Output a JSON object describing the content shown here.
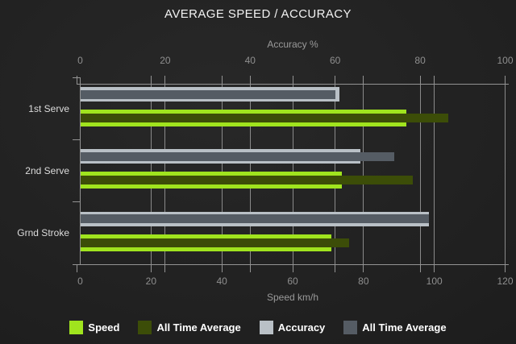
{
  "chart_data": {
    "type": "bar",
    "orientation": "horizontal",
    "title": "AVERAGE SPEED / ACCURACY",
    "categories": [
      "1st Serve",
      "2nd Serve",
      "Grnd Stroke"
    ],
    "axes": {
      "top": {
        "label": "Accuracy %",
        "ticks": [
          0,
          20,
          40,
          60,
          80,
          100
        ],
        "range": [
          0,
          100
        ]
      },
      "bottom": {
        "label": "Speed km/h",
        "ticks": [
          0,
          20,
          40,
          60,
          80,
          100,
          120
        ],
        "range": [
          0,
          120
        ]
      }
    },
    "series": [
      {
        "name": "Speed",
        "axis": "bottom",
        "color": "#a0e41e",
        "values": [
          92,
          74,
          71
        ]
      },
      {
        "name": "All Time Average",
        "axis": "bottom",
        "color": "#3c4d08",
        "values": [
          104,
          94,
          76
        ]
      },
      {
        "name": "Accuracy",
        "axis": "top",
        "color": "#b9c0c6",
        "values": [
          61,
          66,
          82
        ]
      },
      {
        "name": "All Time Average",
        "axis": "top",
        "color": "#555c64",
        "values": [
          60,
          74,
          82
        ]
      }
    ],
    "legend": [
      {
        "label": "Speed",
        "color": "#a0e41e"
      },
      {
        "label": "All Time Average",
        "color": "#3c4d08"
      },
      {
        "label": "Accuracy",
        "color": "#b9c0c6"
      },
      {
        "label": "All Time Average",
        "color": "#555c64"
      }
    ],
    "grid": true,
    "legend_position": "bottom"
  },
  "colors": {
    "background": "#1f1f1f",
    "speed": "#a0e41e",
    "all_time_average_speed": "#3c4d08",
    "accuracy": "#b9c0c6",
    "all_time_average_accuracy": "#555c64",
    "gridline": "#8a8a8a",
    "axis_line": "#939393",
    "tick_label": "#8f8f8f",
    "axis_title": "#9a9a9a",
    "category_label": "#dcdcdc",
    "title": "#f2f2f2",
    "legend_text": "#ffffff"
  }
}
